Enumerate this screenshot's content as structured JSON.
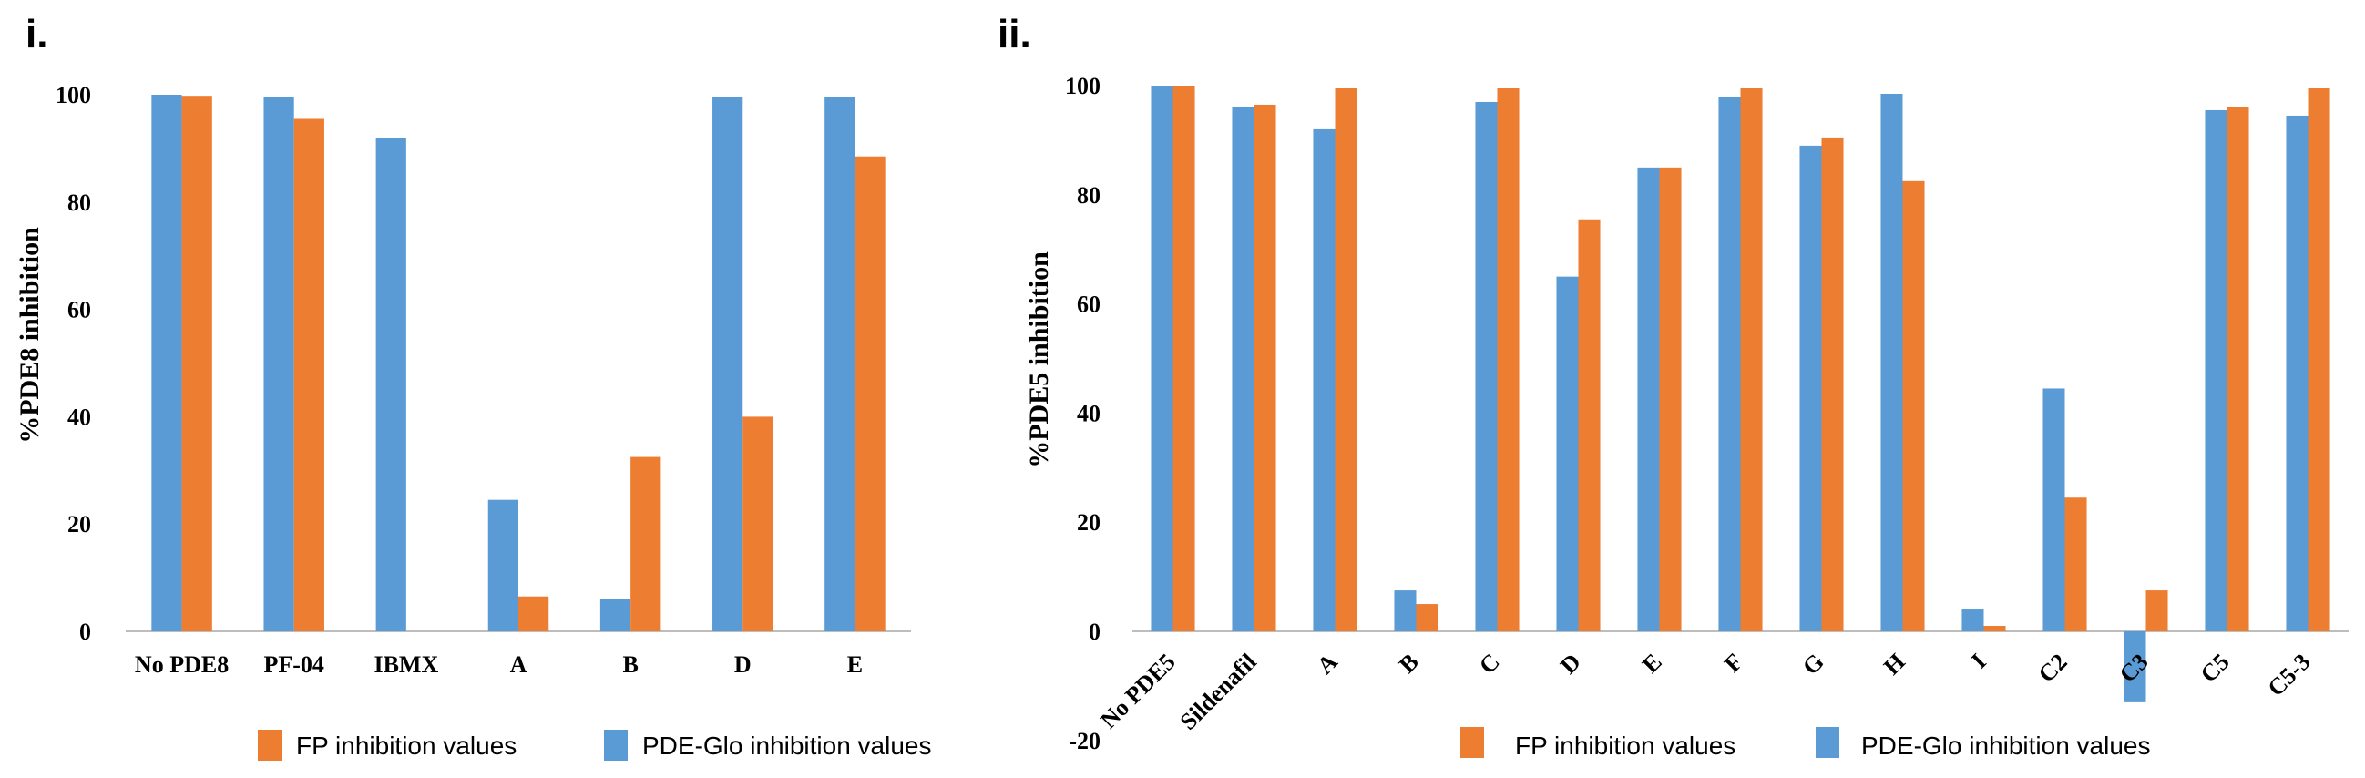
{
  "colors": {
    "fp": "#ED7D31",
    "glo": "#5B9BD5"
  },
  "legend": {
    "fp_label": "FP inhibition values",
    "glo_label": "PDE-Glo inhibition values"
  },
  "chart_data": [
    {
      "type": "bar",
      "panel_label": "i.",
      "ylabel": "%PDE8 inhibition",
      "xlabel": "",
      "ylim": [
        0,
        100
      ],
      "yticks": [
        0,
        20,
        40,
        60,
        80,
        100
      ],
      "legend_position": "bottom",
      "categories": [
        "No PDE8",
        "PF-04",
        "IBMX",
        "A",
        "B",
        "D",
        "E"
      ],
      "series": [
        {
          "name": "PDE-Glo inhibition values",
          "values": [
            100,
            99.5,
            92,
            24.5,
            6,
            99.5,
            99.5
          ]
        },
        {
          "name": "FP inhibition values",
          "values": [
            99.8,
            95.5,
            0,
            6.5,
            32.5,
            40,
            88.5
          ]
        }
      ]
    },
    {
      "type": "bar",
      "panel_label": "ii.",
      "ylabel": "%PDE5 inhibition",
      "xlabel": "",
      "ylim": [
        -20,
        100
      ],
      "yticks": [
        -20,
        0,
        20,
        40,
        60,
        80,
        100
      ],
      "legend_position": "bottom",
      "categories": [
        "No PDE5",
        "Sildenafil",
        "A",
        "B",
        "C",
        "D",
        "E",
        "F",
        "G",
        "H",
        "I",
        "C2",
        "C3",
        "C5",
        "C5-3"
      ],
      "series": [
        {
          "name": "PDE-Glo inhibition values",
          "values": [
            100,
            96,
            92,
            7.5,
            97,
            65,
            85,
            98,
            89,
            98.5,
            4,
            44.5,
            -13,
            95.5,
            94.5
          ]
        },
        {
          "name": "FP inhibition values",
          "values": [
            100,
            96.5,
            99.5,
            5,
            99.5,
            75.5,
            85,
            99.5,
            90.5,
            82.5,
            1,
            24.5,
            7.5,
            96,
            99.5
          ]
        }
      ]
    }
  ]
}
